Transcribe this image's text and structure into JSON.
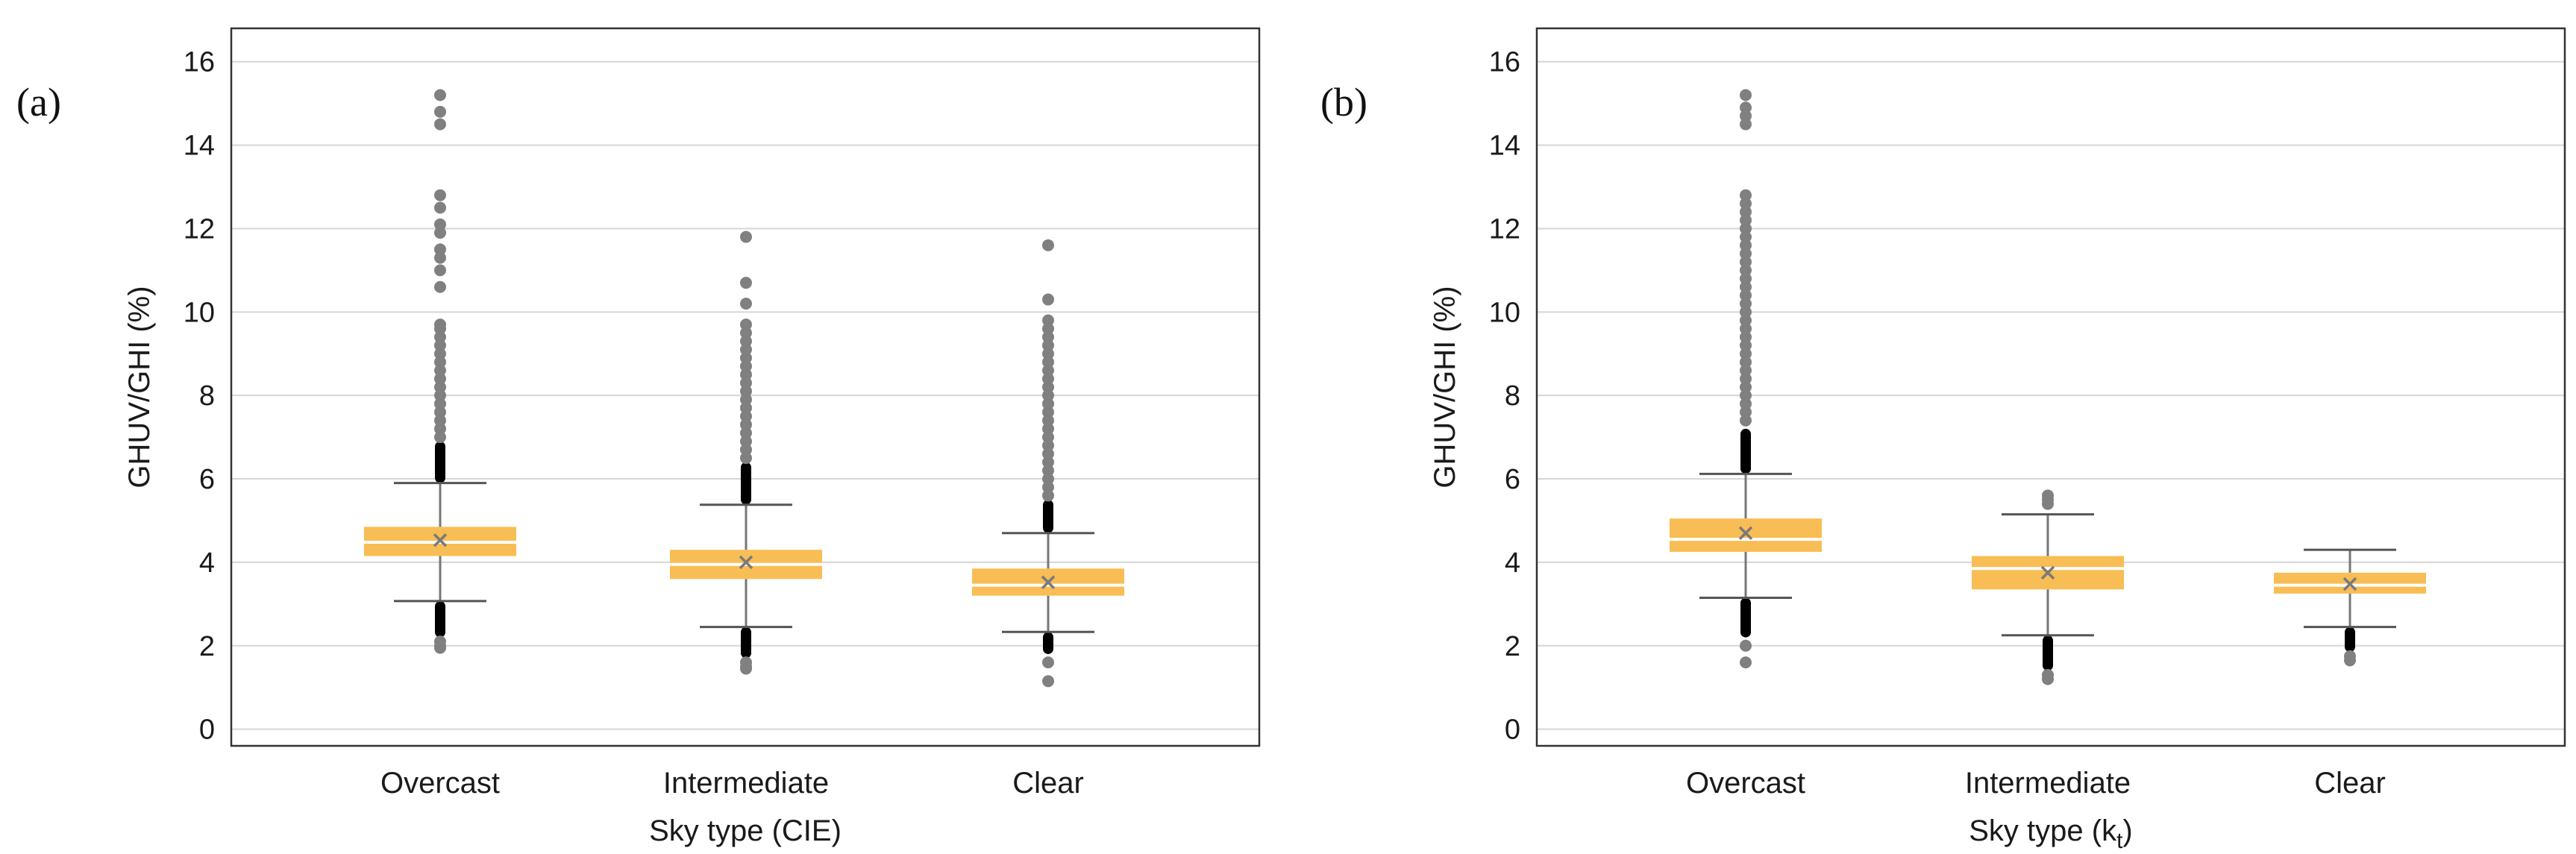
{
  "colors": {
    "box": "#f8bd54",
    "median": "#ffffff",
    "mean": "#7a7a7a",
    "outlier": "#808080",
    "dense_outlier": "#000000",
    "whisker": "#777777",
    "grid": "#d6d6d6",
    "frame": "#333333"
  },
  "chart_data": [
    {
      "type": "box",
      "panel_label": "(a)",
      "title": "",
      "xlabel": "Sky type (CIE)",
      "ylabel": "GHUV/GHI (%)",
      "ylim": [
        -0.4,
        16.8
      ],
      "yticks": [
        "0",
        "2",
        "4",
        "6",
        "8",
        "10",
        "12",
        "14",
        "16"
      ],
      "grid": true,
      "categories": [
        "Overcast",
        "Intermediate",
        "Clear"
      ],
      "boxes": [
        {
          "category": "Overcast",
          "q1": 4.15,
          "median": 4.48,
          "q3": 4.85,
          "mean": 4.53,
          "whisker_low": 3.07,
          "whisker_high": 5.9,
          "dense_upper": [
            5.9,
            6.9
          ],
          "dense_lower": [
            2.2,
            3.07
          ],
          "outliers": [
            15.2,
            14.8,
            14.5,
            12.8,
            12.5,
            12.1,
            11.9,
            11.5,
            11.3,
            11.0,
            10.6,
            9.7,
            9.6,
            9.4,
            9.2,
            9.0,
            8.8,
            8.6,
            8.4,
            8.2,
            8.0,
            7.8,
            7.6,
            7.4,
            7.2,
            7.0,
            2.1,
            2.0,
            1.95
          ]
        },
        {
          "category": "Intermediate",
          "q1": 3.6,
          "median": 3.95,
          "q3": 4.3,
          "mean": 4.0,
          "whisker_low": 2.45,
          "whisker_high": 5.38,
          "dense_upper": [
            5.38,
            6.4
          ],
          "dense_lower": [
            1.7,
            2.45
          ],
          "outliers": [
            11.8,
            10.7,
            10.2,
            9.7,
            9.5,
            9.3,
            9.1,
            8.9,
            8.7,
            8.5,
            8.3,
            8.1,
            7.9,
            7.7,
            7.5,
            7.3,
            7.1,
            6.9,
            6.7,
            6.5,
            1.6,
            1.5,
            1.45
          ]
        },
        {
          "category": "Clear",
          "q1": 3.2,
          "median": 3.45,
          "q3": 3.85,
          "mean": 3.52,
          "whisker_low": 2.33,
          "whisker_high": 4.7,
          "dense_upper": [
            4.7,
            5.5
          ],
          "dense_lower": [
            1.8,
            2.33
          ],
          "outliers": [
            11.6,
            10.3,
            9.8,
            9.6,
            9.4,
            9.2,
            9.0,
            8.8,
            8.6,
            8.4,
            8.2,
            8.0,
            7.8,
            7.6,
            7.4,
            7.2,
            7.0,
            6.8,
            6.6,
            6.4,
            6.2,
            6.0,
            5.8,
            5.6,
            1.6,
            1.15
          ]
        }
      ]
    },
    {
      "type": "box",
      "panel_label": "(b)",
      "title": "",
      "xlabel": "Sky type (k",
      "xlabel_sub": "t",
      "xlabel_close": ")",
      "ylabel": "GHUV/GHI (%)",
      "ylim": [
        -0.4,
        16.8
      ],
      "yticks": [
        "0",
        "2",
        "4",
        "6",
        "8",
        "10",
        "12",
        "14",
        "16"
      ],
      "grid": true,
      "categories": [
        "Overcast",
        "Intermediate",
        "Clear"
      ],
      "boxes": [
        {
          "category": "Overcast",
          "q1": 4.25,
          "median": 4.55,
          "q3": 5.05,
          "mean": 4.7,
          "whisker_low": 3.15,
          "whisker_high": 6.12,
          "dense_upper": [
            6.12,
            7.2
          ],
          "dense_lower": [
            2.2,
            3.15
          ],
          "outliers": [
            15.2,
            14.9,
            14.7,
            14.5,
            12.8,
            12.6,
            12.4,
            12.2,
            12.0,
            11.8,
            11.6,
            11.4,
            11.2,
            11.0,
            10.8,
            10.6,
            10.4,
            10.2,
            10.0,
            9.8,
            9.6,
            9.4,
            9.2,
            9.0,
            8.8,
            8.6,
            8.4,
            8.2,
            8.0,
            7.8,
            7.6,
            7.4,
            2.0,
            1.6
          ]
        },
        {
          "category": "Intermediate",
          "q1": 3.35,
          "median": 3.85,
          "q3": 4.15,
          "mean": 3.75,
          "whisker_low": 2.25,
          "whisker_high": 5.15,
          "dense_upper": [],
          "dense_lower": [
            1.4,
            2.25
          ],
          "outliers": [
            5.6,
            5.5,
            5.4,
            1.3,
            1.2
          ]
        },
        {
          "category": "Clear",
          "q1": 3.25,
          "median": 3.45,
          "q3": 3.75,
          "mean": 3.48,
          "whisker_low": 2.45,
          "whisker_high": 4.3,
          "dense_upper": [],
          "dense_lower": [
            1.85,
            2.45
          ],
          "outliers": [
            1.75,
            1.65
          ]
        }
      ]
    }
  ]
}
